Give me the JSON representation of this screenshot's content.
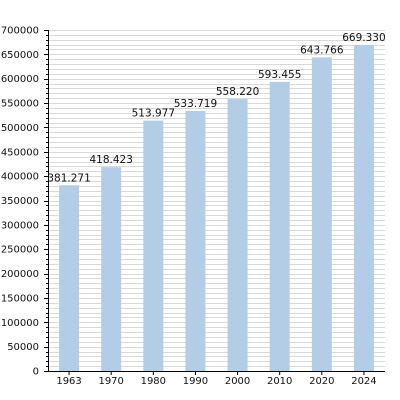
{
  "chart_data": {
    "type": "bar",
    "categories": [
      "1963",
      "1970",
      "1980",
      "1990",
      "2000",
      "2010",
      "2020",
      "2024"
    ],
    "values": [
      381271,
      418423,
      513977,
      533719,
      558220,
      593455,
      643766,
      669330
    ],
    "data_labels": [
      "381.271",
      "418.423",
      "513.977",
      "533.719",
      "558.220",
      "593.455",
      "643.766",
      "669.330"
    ],
    "ylim": [
      0,
      700000
    ],
    "yticks": [
      0,
      50000,
      100000,
      150000,
      200000,
      250000,
      300000,
      350000,
      400000,
      450000,
      500000,
      550000,
      600000,
      650000,
      700000
    ],
    "ytick_labels": [
      "0",
      "50000",
      "100000",
      "150000",
      "200000",
      "250000",
      "300000",
      "350000",
      "400000",
      "450000",
      "500000",
      "550000",
      "600000",
      "650000",
      "700000"
    ],
    "minor_tick_step": 10000,
    "grid": true,
    "bar_color": "#b3cde6",
    "grid_color": "#d9d9d9",
    "axis_color": "#000000"
  }
}
